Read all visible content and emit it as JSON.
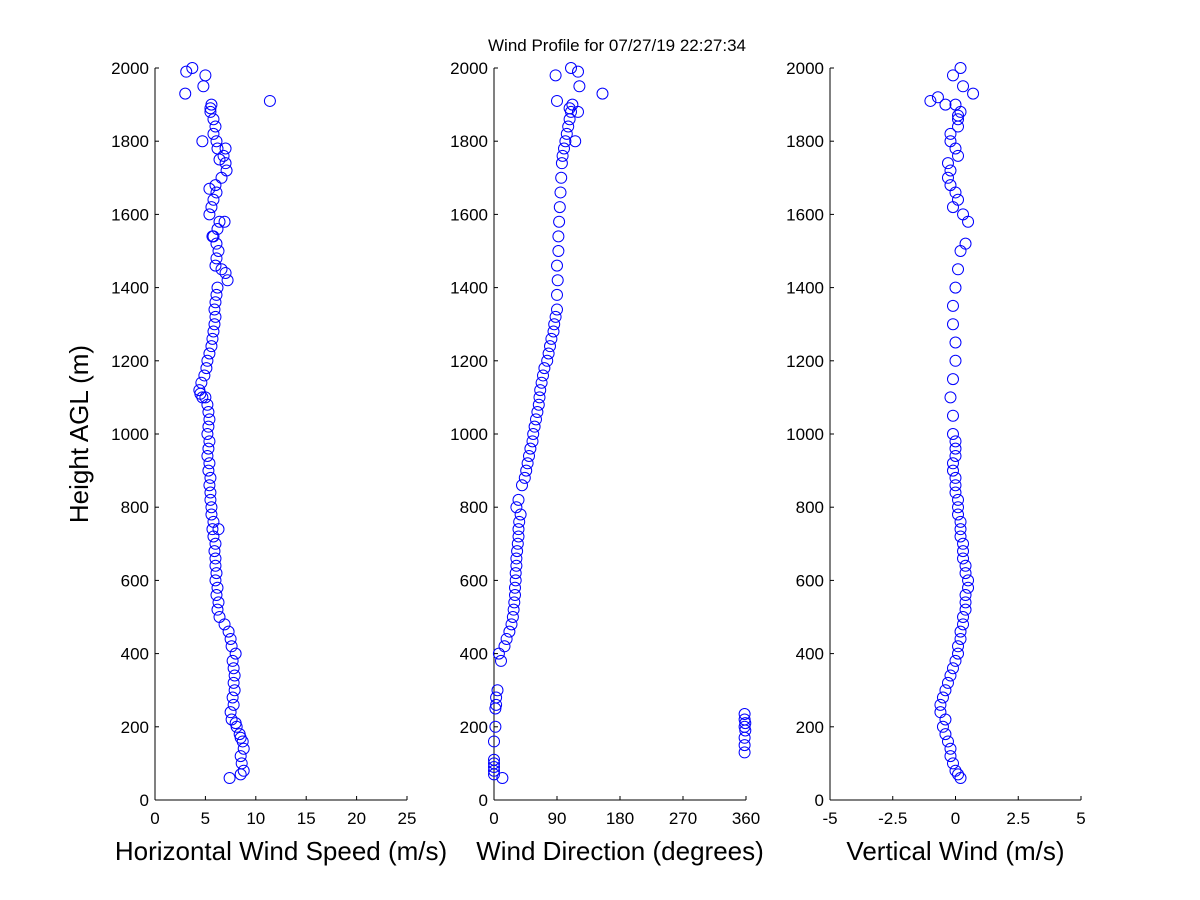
{
  "title": "Wind Profile for  07/27/19 22:27:34",
  "marker_color": "#0000ff",
  "chart_data": [
    {
      "type": "scatter",
      "xlabel": "Horizontal Wind Speed (m/s)",
      "ylabel": "Height AGL (m)",
      "xlim": [
        0,
        25
      ],
      "ylim": [
        0,
        2000
      ],
      "xticks": [
        0,
        5,
        10,
        15,
        20,
        25
      ],
      "xtick_labels": [
        "0",
        "5",
        "10",
        "15",
        "20",
        "25"
      ],
      "yticks": [
        0,
        200,
        400,
        600,
        800,
        1000,
        1200,
        1400,
        1600,
        1800,
        2000
      ],
      "ytick_labels": [
        "0",
        "200",
        "400",
        "600",
        "800",
        "1000",
        "1200",
        "1400",
        "1600",
        "1800",
        "2000"
      ],
      "grid": false,
      "x": [
        7.4,
        8.5,
        8.8,
        8.6,
        8.5,
        8.8,
        8.7,
        8.5,
        8.4,
        8.1,
        8.0,
        7.6,
        7.5,
        7.8,
        7.7,
        7.9,
        7.8,
        7.9,
        7.8,
        7.7,
        8.0,
        7.6,
        7.5,
        7.3,
        6.9,
        6.4,
        6.2,
        6.3,
        6.1,
        6.2,
        6.0,
        6.1,
        6.0,
        6.0,
        5.9,
        6.0,
        5.8,
        5.7,
        6.3,
        5.8,
        5.6,
        5.6,
        5.5,
        5.5,
        5.4,
        5.5,
        5.3,
        5.4,
        5.2,
        5.3,
        5.4,
        5.2,
        5.3,
        5.4,
        5.3,
        5.2,
        5.0,
        4.7,
        4.5,
        4.4,
        4.6,
        4.9,
        5.1,
        5.2,
        5.4,
        5.6,
        5.7,
        5.8,
        5.9,
        6.0,
        5.9,
        6.0,
        6.1,
        6.2,
        6.0,
        6.1,
        7.2,
        7.0,
        6.6,
        6.3,
        6.1,
        5.8,
        6.2,
        5.7,
        5.4,
        6.4,
        6.9,
        5.6,
        5.8,
        6.1,
        5.4,
        6.0,
        6.6,
        7.1,
        7.0,
        6.4,
        6.8,
        6.2,
        7.0,
        6.1,
        4.7,
        5.8,
        6.0,
        5.8,
        5.5,
        5.6,
        5.5,
        11.4,
        4.8,
        3.0,
        5.0,
        3.1,
        3.7
      ],
      "y": [
        60,
        70,
        80,
        100,
        120,
        140,
        160,
        170,
        180,
        200,
        210,
        220,
        240,
        260,
        280,
        300,
        320,
        340,
        360,
        380,
        400,
        420,
        440,
        460,
        480,
        500,
        520,
        540,
        560,
        580,
        600,
        620,
        640,
        660,
        680,
        700,
        720,
        740,
        740,
        760,
        780,
        800,
        820,
        840,
        860,
        880,
        900,
        920,
        940,
        960,
        980,
        1000,
        1020,
        1040,
        1060,
        1080,
        1100,
        1100,
        1110,
        1120,
        1140,
        1160,
        1180,
        1200,
        1220,
        1240,
        1260,
        1280,
        1300,
        1320,
        1340,
        1360,
        1380,
        1400,
        1460,
        1480,
        1420,
        1440,
        1450,
        1500,
        1520,
        1540,
        1560,
        1540,
        1600,
        1580,
        1580,
        1620,
        1640,
        1660,
        1670,
        1680,
        1700,
        1720,
        1740,
        1750,
        1760,
        1780,
        1780,
        1800,
        1800,
        1820,
        1840,
        1860,
        1880,
        1900,
        1890,
        1910,
        1950,
        1930,
        1980,
        1990,
        2000
      ]
    },
    {
      "type": "scatter",
      "xlabel": "Wind Direction (degrees)",
      "ylabel": "",
      "xlim": [
        0,
        360
      ],
      "ylim": [
        0,
        2000
      ],
      "xticks": [
        0,
        90,
        180,
        270,
        360
      ],
      "xtick_labels": [
        "0",
        "90",
        "180",
        "270",
        "360"
      ],
      "yticks": [
        0,
        200,
        400,
        600,
        800,
        1000,
        1200,
        1400,
        1600,
        1800,
        2000
      ],
      "ytick_labels": [
        "0",
        "200",
        "400",
        "600",
        "800",
        "1000",
        "1200",
        "1400",
        "1600",
        "1800",
        "2000"
      ],
      "grid": false,
      "x": [
        12,
        0,
        0,
        0,
        0,
        0,
        0,
        2,
        2,
        3,
        3,
        5,
        10,
        7,
        15,
        18,
        22,
        25,
        27,
        28,
        29,
        30,
        30,
        31,
        31,
        32,
        32,
        33,
        34,
        35,
        35,
        36,
        38,
        32,
        35,
        40,
        44,
        46,
        48,
        50,
        52,
        55,
        56,
        58,
        60,
        62,
        64,
        65,
        66,
        68,
        70,
        72,
        76,
        78,
        80,
        82,
        85,
        86,
        88,
        90,
        90,
        91,
        90,
        92,
        92,
        93,
        94,
        95,
        96,
        97,
        98,
        100,
        102,
        104,
        106,
        108,
        110,
        112,
        120,
        90,
        155,
        108,
        88,
        122,
        110,
        120,
        116,
        358,
        358,
        358,
        359,
        358,
        359,
        358,
        358
      ],
      "y": [
        60,
        70,
        80,
        90,
        100,
        110,
        160,
        200,
        250,
        260,
        280,
        300,
        380,
        400,
        420,
        440,
        460,
        480,
        500,
        520,
        540,
        560,
        580,
        600,
        620,
        640,
        660,
        680,
        700,
        720,
        740,
        760,
        780,
        800,
        820,
        860,
        880,
        900,
        920,
        940,
        960,
        980,
        1000,
        1020,
        1040,
        1060,
        1080,
        1100,
        1120,
        1140,
        1160,
        1180,
        1200,
        1220,
        1240,
        1260,
        1280,
        1300,
        1320,
        1340,
        1380,
        1420,
        1460,
        1500,
        1540,
        1580,
        1620,
        1660,
        1700,
        1740,
        1760,
        1780,
        1800,
        1820,
        1840,
        1860,
        1880,
        1900,
        1880,
        1910,
        1930,
        1890,
        1980,
        1950,
        2000,
        1990,
        1800,
        130,
        150,
        170,
        190,
        200,
        210,
        220,
        235
      ]
    },
    {
      "type": "scatter",
      "xlabel": "Vertical Wind (m/s)",
      "ylabel": "",
      "xlim": [
        -5,
        5
      ],
      "ylim": [
        0,
        2000
      ],
      "xticks": [
        -5,
        -2.5,
        0,
        2.5,
        5
      ],
      "xtick_labels": [
        "-5",
        "-2.5",
        "0",
        "2.5",
        "5"
      ],
      "yticks": [
        0,
        200,
        400,
        600,
        800,
        1000,
        1200,
        1400,
        1600,
        1800,
        2000
      ],
      "ytick_labels": [
        "0",
        "200",
        "400",
        "600",
        "800",
        "1000",
        "1200",
        "1400",
        "1600",
        "1800",
        "2000"
      ],
      "grid": false,
      "x": [
        0.2,
        0.1,
        0.0,
        -0.1,
        -0.2,
        -0.2,
        -0.3,
        -0.4,
        -0.5,
        -0.4,
        -0.6,
        -0.6,
        -0.5,
        -0.4,
        -0.3,
        -0.2,
        -0.1,
        0.0,
        0.1,
        0.1,
        0.2,
        0.2,
        0.3,
        0.3,
        0.4,
        0.4,
        0.4,
        0.5,
        0.5,
        0.4,
        0.4,
        0.3,
        0.3,
        0.3,
        0.2,
        0.2,
        0.2,
        0.1,
        0.1,
        0.1,
        0.0,
        0.0,
        0.0,
        -0.1,
        -0.1,
        0.0,
        0.0,
        0.0,
        -0.1,
        -0.1,
        -0.2,
        -0.1,
        0.0,
        0.0,
        -0.1,
        -0.1,
        0.0,
        0.1,
        0.2,
        0.4,
        0.5,
        0.3,
        -0.1,
        0.1,
        0.0,
        -0.2,
        -0.3,
        -0.2,
        -0.3,
        0.1,
        0.0,
        -0.2,
        -0.2,
        0.1,
        0.1,
        0.2,
        0.1,
        0.0,
        -0.4,
        -1.0,
        -0.7,
        0.7,
        0.3,
        -0.1,
        0.2
      ],
      "y": [
        60,
        70,
        80,
        100,
        120,
        140,
        160,
        180,
        200,
        220,
        240,
        260,
        280,
        300,
        320,
        340,
        360,
        380,
        400,
        420,
        440,
        460,
        480,
        500,
        520,
        540,
        560,
        580,
        600,
        620,
        640,
        660,
        680,
        700,
        720,
        740,
        760,
        780,
        800,
        820,
        840,
        860,
        880,
        900,
        920,
        940,
        960,
        980,
        1000,
        1050,
        1100,
        1150,
        1200,
        1250,
        1300,
        1350,
        1400,
        1450,
        1500,
        1520,
        1580,
        1600,
        1620,
        1640,
        1660,
        1680,
        1700,
        1720,
        1740,
        1760,
        1780,
        1800,
        1820,
        1840,
        1860,
        1880,
        1870,
        1900,
        1900,
        1910,
        1920,
        1930,
        1950,
        1980,
        2000
      ]
    }
  ]
}
